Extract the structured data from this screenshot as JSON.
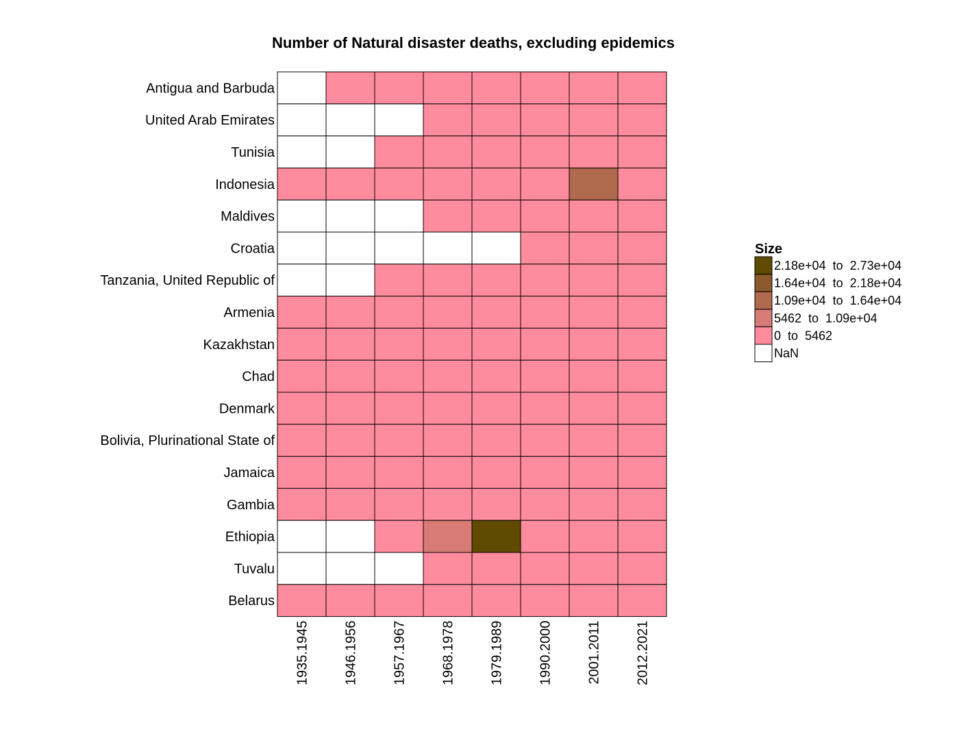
{
  "chart_data": {
    "type": "heatmap",
    "title": "Number of Natural disaster deaths, excluding epidemics",
    "rows": [
      "Antigua and Barbuda",
      "United Arab Emirates",
      "Tunisia",
      "Indonesia",
      "Maldives",
      "Croatia",
      "Tanzania, United Republic of",
      "Armenia",
      "Kazakhstan",
      "Chad",
      "Denmark",
      "Bolivia, Plurinational State of",
      "Jamaica",
      "Gambia",
      "Ethiopia",
      "Tuvalu",
      "Belarus"
    ],
    "columns": [
      "1935.1945",
      "1946.1956",
      "1957.1967",
      "1968.1978",
      "1979.1989",
      "1990.2000",
      "2001.2011",
      "2012.2021"
    ],
    "bins": [
      {
        "label": "NaN",
        "color": "#ffffff"
      },
      {
        "label": "0  to  5462",
        "color": "#ff8c9e"
      },
      {
        "label": "5462  to  1.09e+04",
        "color": "#d87a76"
      },
      {
        "label": "1.09e+04  to  1.64e+04",
        "color": "#b06a4e"
      },
      {
        "label": "1.64e+04  to  2.18e+04",
        "color": "#8a5a2e"
      },
      {
        "label": "2.18e+04  to  2.73e+04",
        "color": "#5f4a00"
      }
    ],
    "values_bin_index": [
      [
        0,
        1,
        1,
        1,
        1,
        1,
        1,
        1
      ],
      [
        0,
        0,
        0,
        1,
        1,
        1,
        1,
        1
      ],
      [
        0,
        0,
        1,
        1,
        1,
        1,
        1,
        1
      ],
      [
        1,
        1,
        1,
        1,
        1,
        1,
        3,
        1
      ],
      [
        0,
        0,
        0,
        1,
        1,
        1,
        1,
        1
      ],
      [
        0,
        0,
        0,
        0,
        0,
        1,
        1,
        1
      ],
      [
        0,
        0,
        1,
        1,
        1,
        1,
        1,
        1
      ],
      [
        1,
        1,
        1,
        1,
        1,
        1,
        1,
        1
      ],
      [
        1,
        1,
        1,
        1,
        1,
        1,
        1,
        1
      ],
      [
        1,
        1,
        1,
        1,
        1,
        1,
        1,
        1
      ],
      [
        1,
        1,
        1,
        1,
        1,
        1,
        1,
        1
      ],
      [
        1,
        1,
        1,
        1,
        1,
        1,
        1,
        1
      ],
      [
        1,
        1,
        1,
        1,
        1,
        1,
        1,
        1
      ],
      [
        1,
        1,
        1,
        1,
        1,
        1,
        1,
        1
      ],
      [
        0,
        0,
        1,
        2,
        5,
        1,
        1,
        1
      ],
      [
        0,
        0,
        0,
        1,
        1,
        1,
        1,
        1
      ],
      [
        1,
        1,
        1,
        1,
        1,
        1,
        1,
        1
      ]
    ],
    "legend": {
      "title": "Size",
      "placement": "right",
      "order": [
        5,
        4,
        3,
        2,
        1,
        0
      ]
    }
  }
}
